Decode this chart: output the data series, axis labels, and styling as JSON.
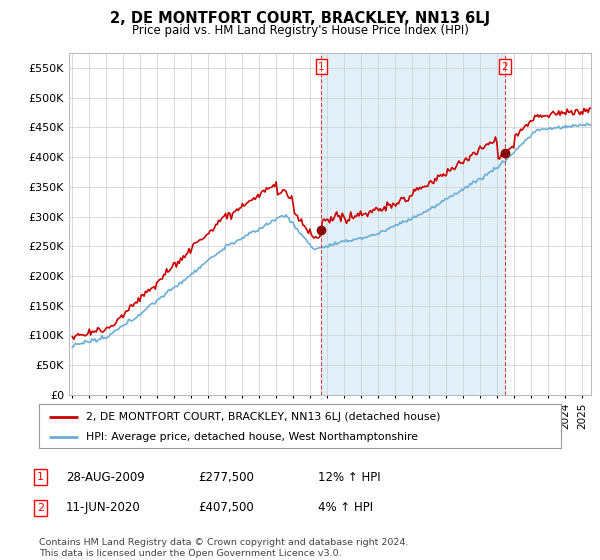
{
  "title": "2, DE MONTFORT COURT, BRACKLEY, NN13 6LJ",
  "subtitle": "Price paid vs. HM Land Registry's House Price Index (HPI)",
  "ylabel_ticks": [
    "£0",
    "£50K",
    "£100K",
    "£150K",
    "£200K",
    "£250K",
    "£300K",
    "£350K",
    "£400K",
    "£450K",
    "£500K",
    "£550K"
  ],
  "ytick_values": [
    0,
    50000,
    100000,
    150000,
    200000,
    250000,
    300000,
    350000,
    400000,
    450000,
    500000,
    550000
  ],
  "ylim": [
    0,
    575000
  ],
  "xlim_start": 1994.8,
  "xlim_end": 2025.5,
  "sale1_x": 2009.65,
  "sale1_y": 277500,
  "sale2_x": 2020.44,
  "sale2_y": 407500,
  "hpi_color": "#6baed6",
  "hpi_fill_color": "#d0e8f5",
  "price_color": "#cc0000",
  "marker_color": "#8b0000",
  "legend_line1": "2, DE MONTFORT COURT, BRACKLEY, NN13 6LJ (detached house)",
  "legend_line2": "HPI: Average price, detached house, West Northamptonshire",
  "table_row1": [
    "1",
    "28-AUG-2009",
    "£277,500",
    "12% ↑ HPI"
  ],
  "table_row2": [
    "2",
    "11-JUN-2020",
    "£407,500",
    "4% ↑ HPI"
  ],
  "footnote": "Contains HM Land Registry data © Crown copyright and database right 2024.\nThis data is licensed under the Open Government Licence v3.0.",
  "background_color": "#ffffff",
  "grid_color": "#cccccc"
}
